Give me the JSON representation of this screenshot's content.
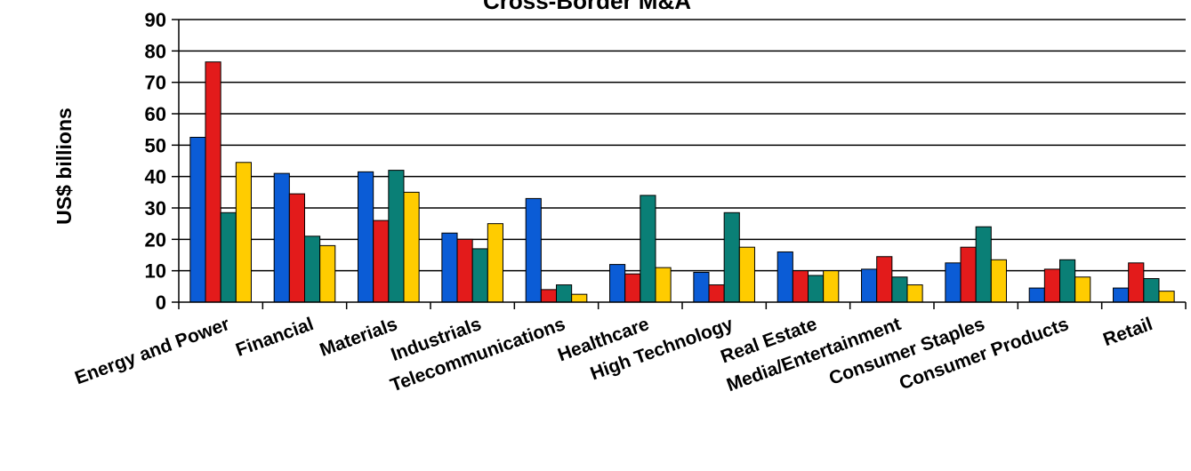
{
  "chart_data": {
    "type": "bar",
    "title": "Cross-Border M&A",
    "xlabel": "",
    "ylabel": "US$ billions",
    "ylim": [
      0,
      90
    ],
    "yticks": [
      0,
      10,
      20,
      30,
      40,
      50,
      60,
      70,
      80,
      90
    ],
    "grid": true,
    "legend": "none",
    "categories": [
      "Energy and Power",
      "Financial",
      "Materials",
      "Industrials",
      "Telecommunications",
      "Healthcare",
      "High Technology",
      "Real Estate",
      "Media/Entertainment",
      "Consumer Staples",
      "Consumer Products",
      "Retail"
    ],
    "series": [
      {
        "color": "#0b5cd6",
        "values": [
          52.5,
          41,
          41.5,
          22,
          33,
          12,
          9.5,
          16,
          10.5,
          12.5,
          4.5,
          4.5
        ]
      },
      {
        "color": "#e31b1b",
        "values": [
          76.5,
          34.5,
          26,
          20,
          4,
          9,
          5.5,
          10,
          14.5,
          17.5,
          10.5,
          12.5
        ]
      },
      {
        "color": "#0a7f76",
        "values": [
          28.5,
          21,
          42,
          17,
          5.5,
          34,
          28.5,
          8.5,
          8,
          24,
          13.5,
          7.5
        ]
      },
      {
        "color": "#ffcc00",
        "values": [
          44.5,
          18,
          35,
          25,
          2.5,
          11,
          17.5,
          10,
          5.5,
          13.5,
          8,
          3.5
        ]
      }
    ]
  }
}
